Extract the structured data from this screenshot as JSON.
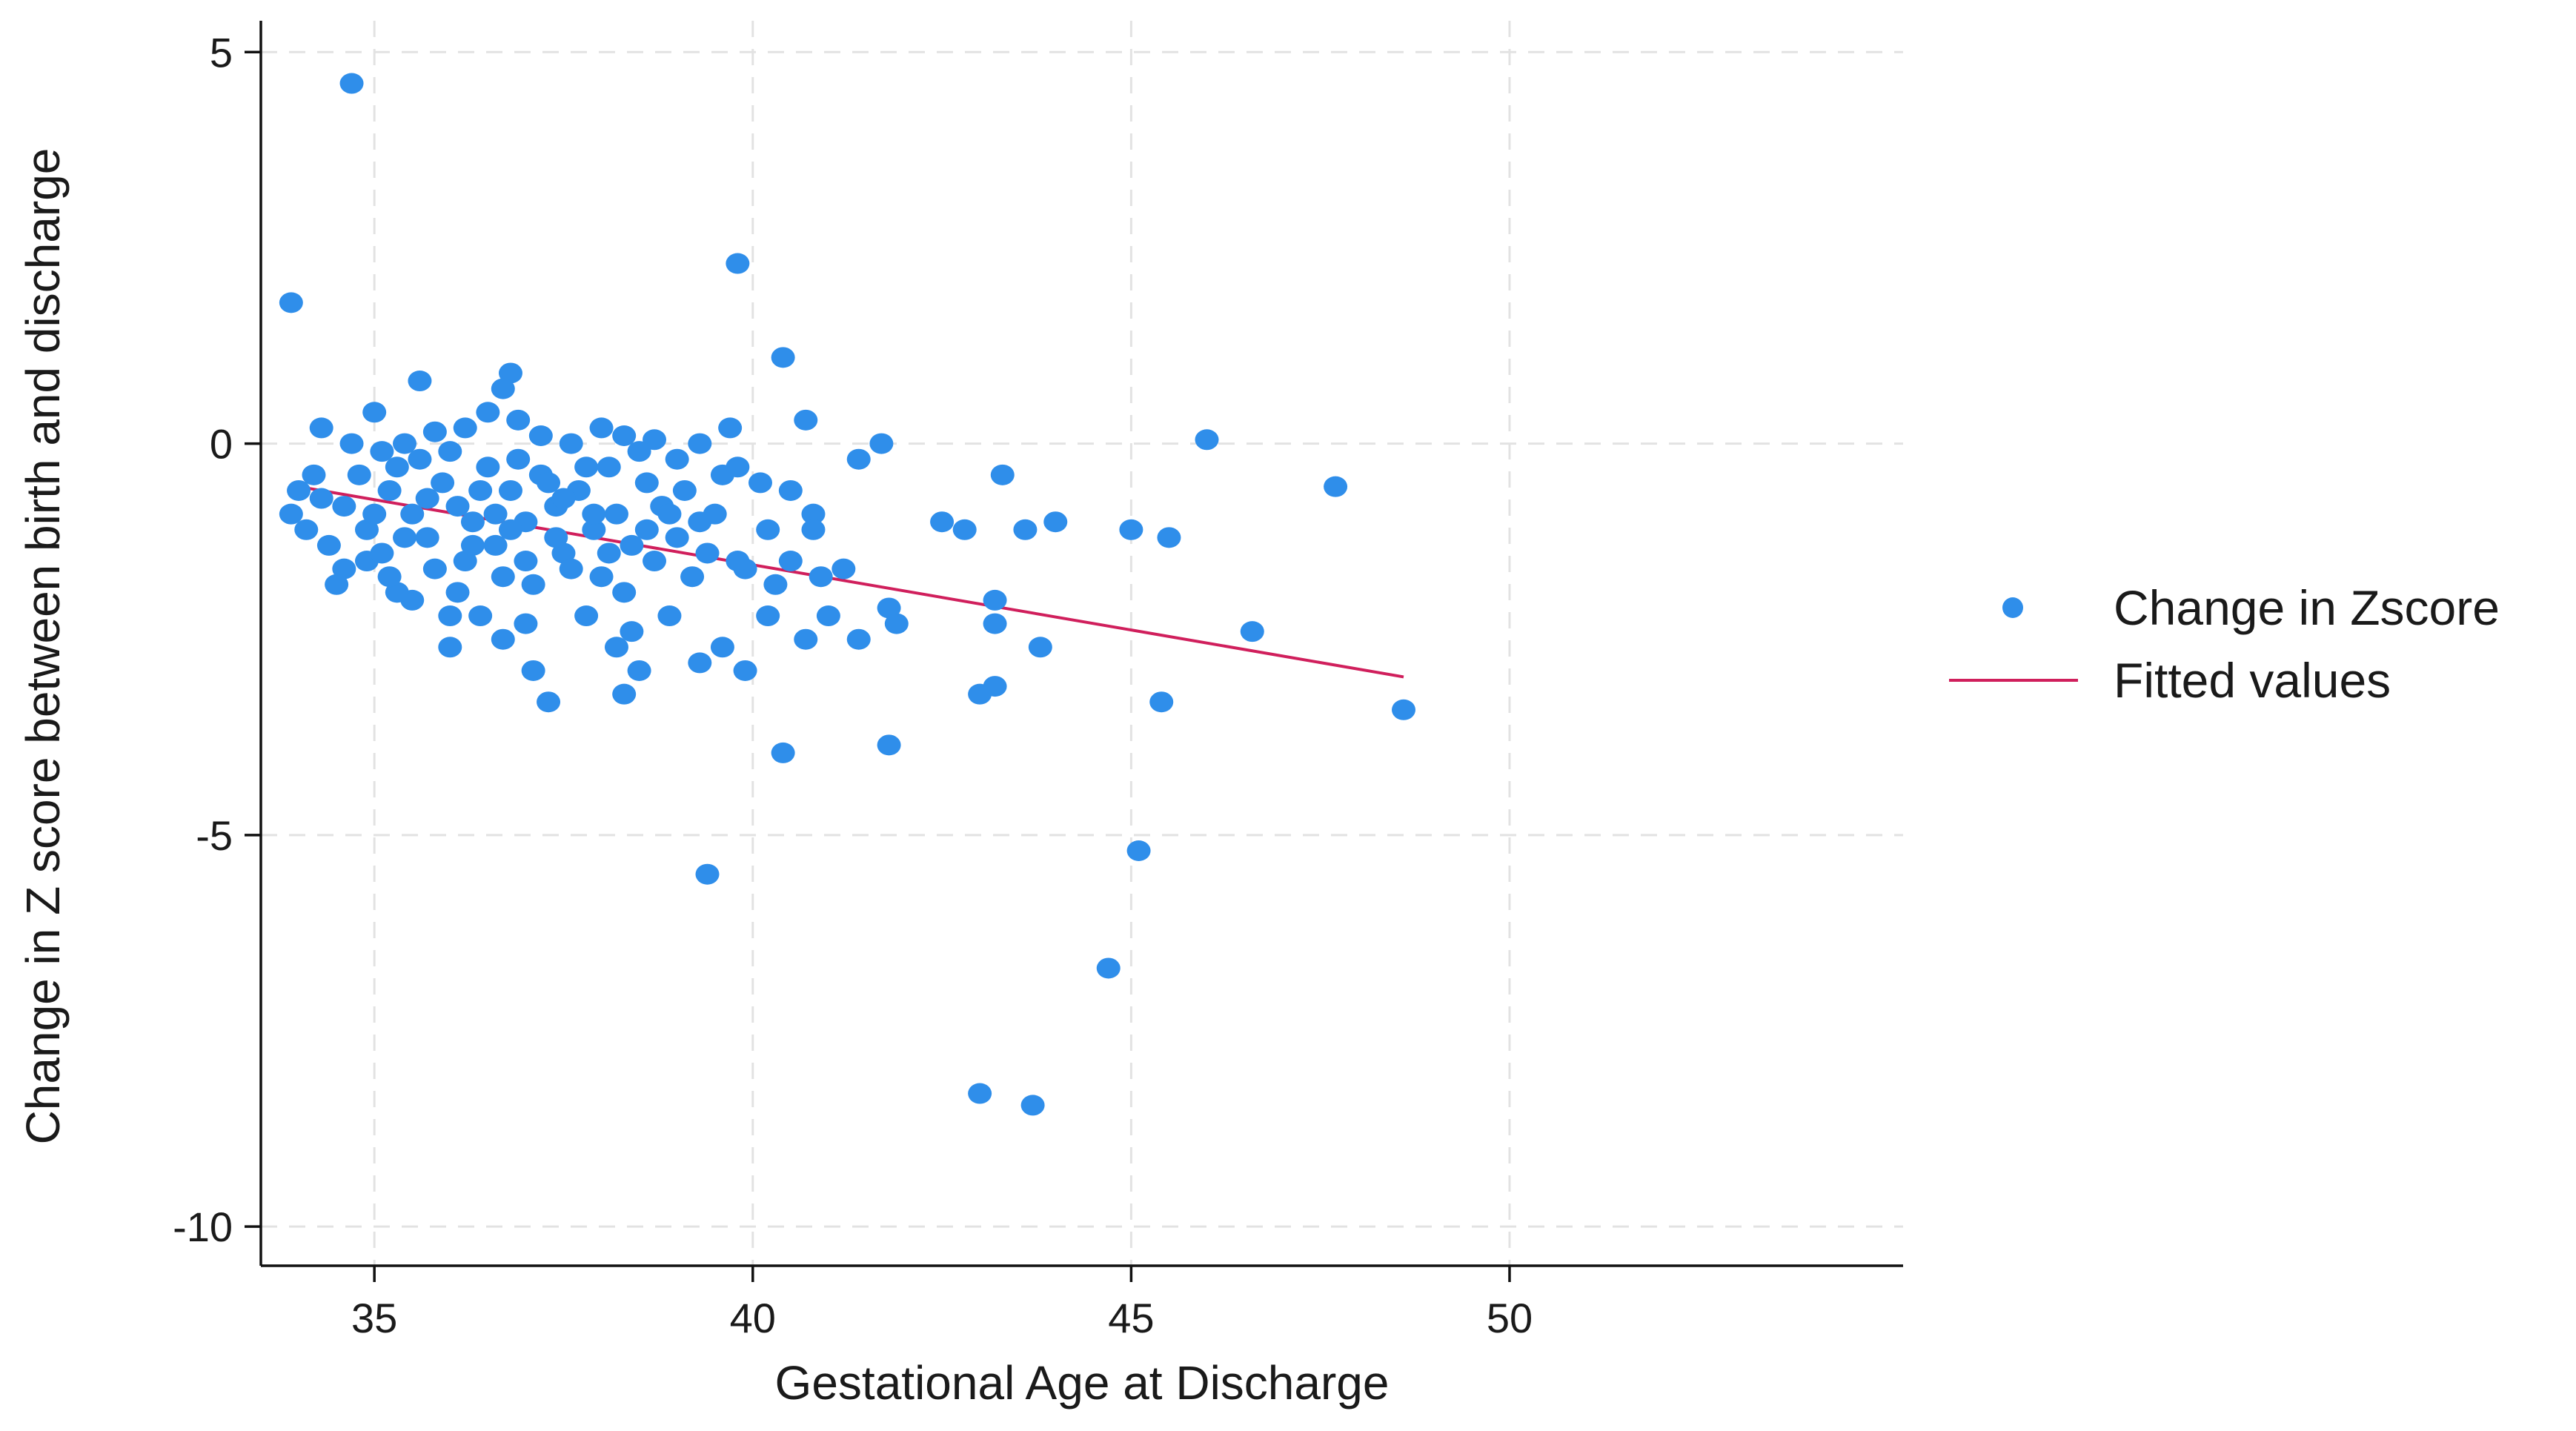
{
  "chart_data": {
    "type": "scatter",
    "title": "",
    "xlabel": "Gestational Age at Discharge",
    "ylabel": "Change in Z score between birth and discharge",
    "xlim": [
      33.5,
      55.2
    ],
    "ylim": [
      -10.5,
      5.4
    ],
    "x_ticks": [
      35,
      40,
      45,
      50
    ],
    "x_tick_labels": [
      "35",
      "40",
      "45",
      "50"
    ],
    "y_ticks": [
      5,
      0,
      -5,
      -10
    ],
    "y_tick_labels": [
      "5",
      "0",
      "-5",
      "-10"
    ],
    "grid": true,
    "legend_position": "right",
    "colors": {
      "points": "#2f8eea",
      "fit": "#d01f5c"
    },
    "series": [
      {
        "name": "Change in Zscore",
        "kind": "scatter",
        "points": [
          [
            34.7,
            4.6
          ],
          [
            33.9,
            1.8
          ],
          [
            39.8,
            2.3
          ],
          [
            40.4,
            1.1
          ],
          [
            40.7,
            0.3
          ],
          [
            36.8,
            0.9
          ],
          [
            36.7,
            0.7
          ],
          [
            35.6,
            0.8
          ],
          [
            35.0,
            0.4
          ],
          [
            34.3,
            0.2
          ],
          [
            41.7,
            0.0
          ],
          [
            41.4,
            -0.2
          ],
          [
            46.0,
            0.05
          ],
          [
            47.7,
            -0.55
          ],
          [
            43.3,
            -0.4
          ],
          [
            44.0,
            -1.0
          ],
          [
            43.6,
            -1.1
          ],
          [
            45.0,
            -1.1
          ],
          [
            45.5,
            -1.2
          ],
          [
            42.8,
            -1.1
          ],
          [
            42.5,
            -1.0
          ],
          [
            43.2,
            -2.0
          ],
          [
            43.2,
            -2.3
          ],
          [
            43.2,
            -3.1
          ],
          [
            43.0,
            -3.2
          ],
          [
            43.8,
            -2.6
          ],
          [
            46.6,
            -2.4
          ],
          [
            45.4,
            -3.3
          ],
          [
            48.6,
            -3.4
          ],
          [
            41.8,
            -3.85
          ],
          [
            40.4,
            -3.95
          ],
          [
            39.4,
            -5.5
          ],
          [
            45.1,
            -5.2
          ],
          [
            44.7,
            -6.7
          ],
          [
            43.0,
            -8.3
          ],
          [
            43.7,
            -8.45
          ],
          [
            41.8,
            -2.1
          ],
          [
            41.9,
            -2.3
          ],
          [
            41.4,
            -2.5
          ],
          [
            41.0,
            -2.2
          ],
          [
            40.7,
            -2.5
          ],
          [
            40.2,
            -2.2
          ],
          [
            39.9,
            -2.9
          ],
          [
            39.6,
            -2.6
          ],
          [
            39.3,
            -2.8
          ],
          [
            38.3,
            -3.2
          ],
          [
            37.3,
            -3.3
          ],
          [
            38.2,
            -2.6
          ],
          [
            38.5,
            -2.9
          ],
          [
            38.4,
            -2.4
          ],
          [
            37.1,
            -2.9
          ],
          [
            36.4,
            -2.2
          ],
          [
            35.5,
            -2.0
          ],
          [
            34.6,
            -1.6
          ],
          [
            34.9,
            -1.5
          ],
          [
            35.3,
            -1.9
          ],
          [
            36.0,
            -2.2
          ],
          [
            36.7,
            -2.5
          ],
          [
            37.0,
            -2.3
          ],
          [
            37.8,
            -2.2
          ],
          [
            38.9,
            -2.2
          ],
          [
            39.2,
            -1.7
          ],
          [
            39.9,
            -1.6
          ],
          [
            40.5,
            -1.5
          ],
          [
            40.9,
            -1.7
          ],
          [
            41.2,
            -1.6
          ],
          [
            40.1,
            -0.5
          ],
          [
            40.5,
            -0.6
          ],
          [
            40.8,
            -0.9
          ],
          [
            40.8,
            -1.1
          ],
          [
            40.2,
            -1.1
          ],
          [
            39.8,
            -1.5
          ],
          [
            39.5,
            -0.9
          ],
          [
            39.7,
            0.2
          ],
          [
            39.3,
            0.0
          ],
          [
            39.0,
            -0.2
          ],
          [
            38.7,
            0.05
          ],
          [
            38.3,
            0.1
          ],
          [
            38.0,
            0.2
          ],
          [
            37.6,
            0.0
          ],
          [
            37.2,
            0.1
          ],
          [
            36.9,
            0.3
          ],
          [
            36.5,
            0.4
          ],
          [
            36.2,
            0.2
          ],
          [
            35.8,
            0.15
          ],
          [
            35.4,
            0.0
          ],
          [
            35.1,
            -0.1
          ],
          [
            34.7,
            0.0
          ],
          [
            34.2,
            -0.4
          ],
          [
            34.0,
            -0.6
          ],
          [
            33.9,
            -0.9
          ],
          [
            34.1,
            -1.1
          ],
          [
            34.4,
            -1.3
          ],
          [
            34.6,
            -0.8
          ],
          [
            34.9,
            -1.1
          ],
          [
            35.2,
            -0.6
          ],
          [
            35.5,
            -0.9
          ],
          [
            35.7,
            -1.2
          ],
          [
            35.9,
            -0.5
          ],
          [
            36.1,
            -0.8
          ],
          [
            36.3,
            -1.0
          ],
          [
            36.5,
            -0.3
          ],
          [
            36.6,
            -1.3
          ],
          [
            36.8,
            -0.6
          ],
          [
            37.0,
            -1.0
          ],
          [
            37.2,
            -0.4
          ],
          [
            37.4,
            -0.8
          ],
          [
            37.5,
            -1.4
          ],
          [
            37.7,
            -0.6
          ],
          [
            37.9,
            -1.1
          ],
          [
            38.1,
            -0.3
          ],
          [
            38.2,
            -0.9
          ],
          [
            38.4,
            -1.3
          ],
          [
            38.6,
            -0.5
          ],
          [
            38.8,
            -0.8
          ],
          [
            39.0,
            -1.2
          ],
          [
            39.1,
            -0.6
          ],
          [
            39.4,
            -1.4
          ],
          [
            39.6,
            -0.4
          ],
          [
            35.3,
            -0.3
          ],
          [
            35.6,
            -0.2
          ],
          [
            36.0,
            -0.1
          ],
          [
            36.4,
            -0.6
          ],
          [
            36.9,
            -0.2
          ],
          [
            37.3,
            -0.5
          ],
          [
            37.8,
            -0.3
          ],
          [
            38.5,
            -0.1
          ],
          [
            35.1,
            -1.4
          ],
          [
            35.8,
            -1.6
          ],
          [
            36.2,
            -1.5
          ],
          [
            36.7,
            -1.7
          ],
          [
            37.1,
            -1.8
          ],
          [
            37.6,
            -1.6
          ],
          [
            38.0,
            -1.7
          ],
          [
            38.3,
            -1.9
          ],
          [
            38.7,
            -1.5
          ],
          [
            36.0,
            -2.6
          ],
          [
            34.5,
            -1.8
          ],
          [
            35.0,
            -0.9
          ],
          [
            35.4,
            -1.2
          ],
          [
            36.3,
            -1.3
          ],
          [
            36.8,
            -1.1
          ],
          [
            37.4,
            -1.2
          ],
          [
            37.9,
            -0.9
          ],
          [
            38.6,
            -1.1
          ],
          [
            39.3,
            -1.0
          ],
          [
            34.3,
            -0.7
          ],
          [
            34.8,
            -0.4
          ],
          [
            35.2,
            -1.7
          ],
          [
            35.7,
            -0.7
          ],
          [
            36.1,
            -1.9
          ],
          [
            36.6,
            -0.9
          ],
          [
            37.0,
            -1.5
          ],
          [
            37.5,
            -0.7
          ],
          [
            38.1,
            -1.4
          ],
          [
            38.9,
            -0.9
          ],
          [
            39.8,
            -0.3
          ],
          [
            40.3,
            -1.8
          ]
        ]
      },
      {
        "name": "Fitted values",
        "kind": "line",
        "points": [
          [
            34.0,
            -0.55
          ],
          [
            48.6,
            -2.98
          ]
        ]
      }
    ]
  }
}
